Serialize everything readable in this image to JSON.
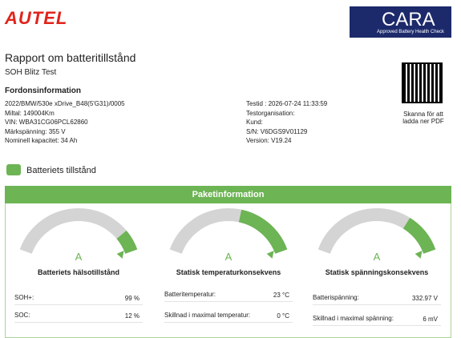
{
  "header": {
    "brand": "AUTEL",
    "badge_title": "CARA",
    "badge_subtitle": "Approved Battery Health Check"
  },
  "report": {
    "title": "Rapport om batteritillstånd",
    "subtitle": "SOH Blitz Test"
  },
  "vehicle": {
    "heading": "Fordonsinformation",
    "left": [
      "2022/BMW/530e xDrive_B48(5'G31)/0005",
      "Miltal: 149004Km",
      "VIN: WBA31CG06PCL62860",
      "Märkspänning: 355 V",
      "Nominell kapacitet: 34 Ah"
    ],
    "right": [
      "Testid : 2026-07-24 11:33:59",
      "Testorganisation:",
      "Kund:",
      "S/N: V6DGS9V01129",
      "Version: V19.24"
    ]
  },
  "qr": {
    "caption": "Skanna för att ladda ner PDF"
  },
  "section": {
    "title": "Batteriets tillstånd",
    "panel_title": "Paketinformation"
  },
  "gauges": [
    {
      "grade": "A",
      "title": "Batteriets hälsotillstånd",
      "rows": [
        [
          "SOH+:",
          "99 %"
        ],
        [
          "SOC:",
          "12 %"
        ]
      ]
    },
    {
      "grade": "A",
      "title": "Statisk temperaturkonsekvens",
      "rows": [
        [
          "Batteritemperatur:",
          "23 °C"
        ],
        [
          "Skillnad i maximal temperatur:",
          "0 °C"
        ]
      ]
    },
    {
      "grade": "A",
      "title": "Statisk spänningskonsekvens",
      "rows": [
        [
          "Batterispänning:",
          "332.97 V"
        ],
        [
          "Skillnad i maximal spänning:",
          "6 mV"
        ]
      ]
    }
  ]
}
